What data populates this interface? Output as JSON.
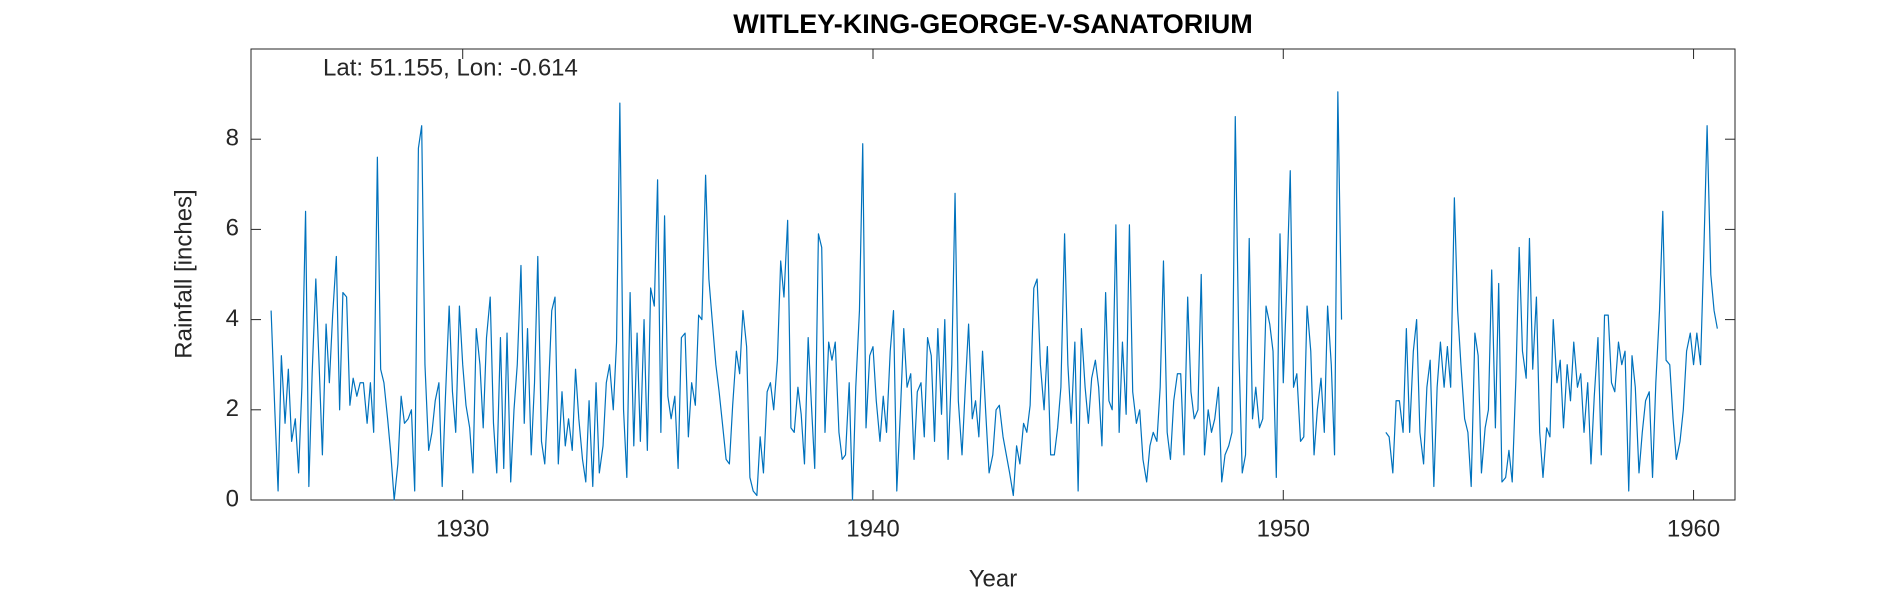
{
  "chart_data": {
    "type": "line",
    "title": "WITLEY-KING-GEORGE-V-SANATORIUM",
    "annotation": "Lat: 51.155, Lon: -0.614",
    "xlabel": "Year",
    "ylabel": "Rainfall [inches]",
    "color": "#0072bd",
    "xlim": [
      1924.84,
      1961.01
    ],
    "xticks": [
      1930,
      1940,
      1950,
      1960
    ],
    "ylim": [
      0,
      10
    ],
    "yticks": [
      0,
      2,
      4,
      6,
      8
    ],
    "x": [
      1925.33,
      1925.42,
      1925.5,
      1925.58,
      1925.67,
      1925.75,
      1925.83,
      1925.92,
      1926.0,
      1926.08,
      1926.17,
      1926.25,
      1926.33,
      1926.42,
      1926.5,
      1926.58,
      1926.67,
      1926.75,
      1926.83,
      1926.92,
      1927.0,
      1927.08,
      1927.17,
      1927.25,
      1927.33,
      1927.42,
      1927.5,
      1927.58,
      1927.67,
      1927.75,
      1927.83,
      1927.92,
      1928.0,
      1928.08,
      1928.17,
      1928.25,
      1928.33,
      1928.42,
      1928.5,
      1928.58,
      1928.67,
      1928.75,
      1928.83,
      1928.92,
      1929.0,
      1929.08,
      1929.17,
      1929.25,
      1929.33,
      1929.42,
      1929.5,
      1929.58,
      1929.67,
      1929.75,
      1929.83,
      1929.92,
      1930.0,
      1930.08,
      1930.17,
      1930.25,
      1930.33,
      1930.42,
      1930.5,
      1930.58,
      1930.67,
      1930.75,
      1930.83,
      1930.92,
      1931.0,
      1931.08,
      1931.17,
      1931.25,
      1931.33,
      1931.42,
      1931.5,
      1931.58,
      1931.67,
      1931.75,
      1931.83,
      1931.92,
      1932.0,
      1932.08,
      1932.17,
      1932.25,
      1932.33,
      1932.42,
      1932.5,
      1932.58,
      1932.67,
      1932.75,
      1932.83,
      1932.92,
      1933.0,
      1933.08,
      1933.17,
      1933.25,
      1933.33,
      1933.42,
      1933.5,
      1933.58,
      1933.67,
      1933.75,
      1933.83,
      1933.92,
      1934.0,
      1934.08,
      1934.17,
      1934.25,
      1934.33,
      1934.42,
      1934.5,
      1934.58,
      1934.67,
      1934.75,
      1934.83,
      1934.92,
      1935.0,
      1935.08,
      1935.17,
      1935.25,
      1935.33,
      1935.42,
      1935.5,
      1935.58,
      1935.67,
      1935.75,
      1935.83,
      1935.92,
      1936.0,
      1936.08,
      1936.17,
      1936.25,
      1936.33,
      1936.42,
      1936.5,
      1936.58,
      1936.67,
      1936.75,
      1936.83,
      1936.92,
      1937.0,
      1937.08,
      1937.17,
      1937.25,
      1937.33,
      1937.42,
      1937.5,
      1937.58,
      1937.67,
      1937.75,
      1937.83,
      1937.92,
      1938.0,
      1938.08,
      1938.17,
      1938.25,
      1938.33,
      1938.42,
      1938.5,
      1938.58,
      1938.67,
      1938.75,
      1938.83,
      1938.92,
      1939.0,
      1939.08,
      1939.17,
      1939.25,
      1939.33,
      1939.42,
      1939.5,
      1939.58,
      1939.67,
      1939.75,
      1939.83,
      1939.92,
      1940.0,
      1940.08,
      1940.17,
      1940.25,
      1940.33,
      1940.42,
      1940.5,
      1940.58,
      1940.67,
      1940.75,
      1940.83,
      1940.92,
      1941.0,
      1941.08,
      1941.17,
      1941.25,
      1941.33,
      1941.42,
      1941.5,
      1941.58,
      1941.67,
      1941.75,
      1941.83,
      1941.92,
      1942.0,
      1942.08,
      1942.17,
      1942.25,
      1942.33,
      1942.42,
      1942.5,
      1942.58,
      1942.67,
      1942.75,
      1942.83,
      1942.92,
      1943.0,
      1943.08,
      1943.17,
      1943.25,
      1943.33,
      1943.42,
      1943.5,
      1943.58,
      1943.67,
      1943.75,
      1943.83,
      1943.92,
      1944.0,
      1944.08,
      1944.17,
      1944.25,
      1944.33,
      1944.42,
      1944.5,
      1944.58,
      1944.67,
      1944.75,
      1944.83,
      1944.92,
      1945.0,
      1945.08,
      1945.17,
      1945.25,
      1945.33,
      1945.42,
      1945.5,
      1945.58,
      1945.67,
      1945.75,
      1945.83,
      1945.92,
      1946.0,
      1946.08,
      1946.17,
      1946.25,
      1946.33,
      1946.42,
      1946.5,
      1946.58,
      1946.67,
      1946.75,
      1946.83,
      1946.92,
      1947.0,
      1947.08,
      1947.17,
      1947.25,
      1947.33,
      1947.42,
      1947.5,
      1947.58,
      1947.67,
      1947.75,
      1947.83,
      1947.92,
      1948.0,
      1948.08,
      1948.17,
      1948.25,
      1948.33,
      1948.42,
      1948.5,
      1948.58,
      1948.67,
      1948.75,
      1948.83,
      1948.92,
      1949.0,
      1949.08,
      1949.17,
      1949.25,
      1949.33,
      1949.42,
      1949.5,
      1949.58,
      1949.67,
      1949.75,
      1949.83,
      1949.92,
      1950.0,
      1950.08,
      1950.17,
      1950.25,
      1950.33,
      1950.42,
      1950.5,
      1950.58,
      1950.67,
      1950.75,
      1950.83,
      1950.92,
      1951.0,
      1951.08,
      1951.17,
      1951.25,
      1951.33,
      1951.42,
      1951.5,
      1951.58,
      1951.67,
      1951.75,
      1951.83,
      1951.92,
      1952.0,
      1952.08,
      1952.17,
      1952.25,
      1952.33,
      1952.42,
      1952.5,
      1952.58,
      1952.67,
      1952.75,
      1952.83,
      1952.92,
      1953.0,
      1953.08,
      1953.17,
      1953.25,
      1953.33,
      1953.42,
      1953.5,
      1953.58,
      1953.67,
      1953.75,
      1953.83,
      1953.92,
      1954.0,
      1954.08,
      1954.17,
      1954.25,
      1954.33,
      1954.42,
      1954.5,
      1954.58,
      1954.67,
      1954.75,
      1954.83,
      1954.92,
      1955.0,
      1955.08,
      1955.17,
      1955.25,
      1955.33,
      1955.42,
      1955.5,
      1955.58,
      1955.67,
      1955.75,
      1955.83,
      1955.92,
      1956.0,
      1956.08,
      1956.17,
      1956.25,
      1956.33,
      1956.42,
      1956.5,
      1956.58,
      1956.67,
      1956.75,
      1956.83,
      1956.92,
      1957.0,
      1957.08,
      1957.17,
      1957.25,
      1957.33,
      1957.42,
      1957.5,
      1957.58,
      1957.67,
      1957.75,
      1957.83,
      1957.92,
      1958.0,
      1958.08,
      1958.17,
      1958.25,
      1958.33,
      1958.42,
      1958.5,
      1958.58,
      1958.67,
      1958.75,
      1958.83,
      1958.92,
      1959.0,
      1959.08,
      1959.17,
      1959.25,
      1959.33,
      1959.42,
      1959.5,
      1959.58,
      1959.67,
      1959.75,
      1959.83,
      1959.92,
      1960.0,
      1960.08,
      1960.17,
      1960.25,
      1960.33,
      1960.42,
      1960.5,
      1960.58
    ],
    "values": [
      4.2,
      2.0,
      0.2,
      3.2,
      1.7,
      2.9,
      1.3,
      1.8,
      0.6,
      2.5,
      6.4,
      0.3,
      2.8,
      4.9,
      3.0,
      1.0,
      3.9,
      2.6,
      4.1,
      5.4,
      2.0,
      4.6,
      4.5,
      2.1,
      2.7,
      2.3,
      2.6,
      2.6,
      1.7,
      2.6,
      1.5,
      7.6,
      2.9,
      2.6,
      1.8,
      1.0,
      0.0,
      0.8,
      2.3,
      1.7,
      1.8,
      2.0,
      0.2,
      7.8,
      8.3,
      3.0,
      1.1,
      1.5,
      2.2,
      2.6,
      0.3,
      2.3,
      4.3,
      2.4,
      1.5,
      4.3,
      3.0,
      2.1,
      1.6,
      0.6,
      3.8,
      3.0,
      1.6,
      3.6,
      4.5,
      1.7,
      0.6,
      3.6,
      0.7,
      3.7,
      0.4,
      2.0,
      3.0,
      5.2,
      1.7,
      3.8,
      1.0,
      2.6,
      5.4,
      1.3,
      0.8,
      2.2,
      4.2,
      4.5,
      0.8,
      2.4,
      1.2,
      1.8,
      1.1,
      2.9,
      1.8,
      0.9,
      0.4,
      2.2,
      0.3,
      2.6,
      0.6,
      1.2,
      2.6,
      3.0,
      2.0,
      3.5,
      8.8,
      2.0,
      0.5,
      4.6,
      1.2,
      3.7,
      1.3,
      4.0,
      1.1,
      4.7,
      4.3,
      7.1,
      1.5,
      6.3,
      2.3,
      1.8,
      2.3,
      0.7,
      3.6,
      3.7,
      1.4,
      2.6,
      2.1,
      4.1,
      4.0,
      7.2,
      4.9,
      4.0,
      3.0,
      2.4,
      1.7,
      0.9,
      0.8,
      2.1,
      3.3,
      2.8,
      4.2,
      3.4,
      0.5,
      0.2,
      0.1,
      1.4,
      0.6,
      2.4,
      2.6,
      2.0,
      3.1,
      5.3,
      4.5,
      6.2,
      1.6,
      1.5,
      2.5,
      1.9,
      0.8,
      3.6,
      2.1,
      0.7,
      5.9,
      5.6,
      1.5,
      3.5,
      3.1,
      3.5,
      1.5,
      0.9,
      1.0,
      2.6,
      0.0,
      2.5,
      4.2,
      7.9,
      1.6,
      3.2,
      3.4,
      2.2,
      1.3,
      2.3,
      1.5,
      3.3,
      4.2,
      0.2,
      2.0,
      3.8,
      2.5,
      2.8,
      0.9,
      2.4,
      2.6,
      1.4,
      3.6,
      3.2,
      1.3,
      3.8,
      1.9,
      4.0,
      0.9,
      3.0,
      6.8,
      2.2,
      1.0,
      2.5,
      3.9,
      1.8,
      2.2,
      1.4,
      3.3,
      1.9,
      0.6,
      1.0,
      2.0,
      2.1,
      1.4,
      1.0,
      0.6,
      0.1,
      1.2,
      0.8,
      1.7,
      1.5,
      2.1,
      4.7,
      4.9,
      3.0,
      2.0,
      3.4,
      1.0,
      1.0,
      1.6,
      2.5,
      5.9,
      3.0,
      1.7,
      3.5,
      0.2,
      3.8,
      2.5,
      1.7,
      2.7,
      3.1,
      2.5,
      1.2,
      4.6,
      2.2,
      2.0,
      6.1,
      1.5,
      3.5,
      1.9,
      6.1,
      2.4,
      1.7,
      2.0,
      0.9,
      0.4,
      1.2,
      1.5,
      1.3,
      2.5,
      5.3,
      1.5,
      0.9,
      2.2,
      2.8,
      2.8,
      1.0,
      4.5,
      2.4,
      1.8,
      2.0,
      5.0,
      1.0,
      2.0,
      1.5,
      1.8,
      2.5,
      0.4,
      1.0,
      1.2,
      1.5,
      8.5,
      3.2,
      0.6,
      1.0,
      5.8,
      1.8,
      2.5,
      1.6,
      1.8,
      4.3,
      3.9,
      3.3,
      0.5,
      5.9,
      2.6,
      4.6,
      7.3,
      2.5,
      2.8,
      1.3,
      1.4,
      4.3,
      3.3,
      1.0,
      2.0,
      2.7,
      1.5,
      4.3,
      3.0,
      1.0,
      9.05,
      4.0,
      null,
      null,
      null,
      null,
      null,
      null,
      null,
      null,
      null,
      null,
      null,
      null,
      1.5,
      1.4,
      0.6,
      2.2,
      2.2,
      1.5,
      3.8,
      1.5,
      3.3,
      4.0,
      1.5,
      0.8,
      2.5,
      3.1,
      0.3,
      2.5,
      3.5,
      2.5,
      3.4,
      2.5,
      6.7,
      4.2,
      3.0,
      1.8,
      1.5,
      0.3,
      3.7,
      3.2,
      0.6,
      1.6,
      2.0,
      5.1,
      1.6,
      4.8,
      0.4,
      0.5,
      1.1,
      0.4,
      2.7,
      5.6,
      3.3,
      2.7,
      5.8,
      2.9,
      4.5,
      1.5,
      0.5,
      1.6,
      1.4,
      4.0,
      2.6,
      3.1,
      1.6,
      3.0,
      2.2,
      3.5,
      2.5,
      2.8,
      1.5,
      2.6,
      0.8,
      2.3,
      3.6,
      1.0,
      4.1,
      4.1,
      2.6,
      2.4,
      3.5,
      3.0,
      3.3,
      0.2,
      3.2,
      2.5,
      0.6,
      1.5,
      2.2,
      2.4,
      0.5,
      2.6,
      4.2,
      6.4,
      3.1,
      3.0,
      1.8,
      0.9,
      1.3,
      2.0,
      3.3,
      3.7,
      3.0,
      3.7,
      3.0,
      5.5,
      8.3,
      5.0,
      4.2,
      3.8
    ]
  }
}
